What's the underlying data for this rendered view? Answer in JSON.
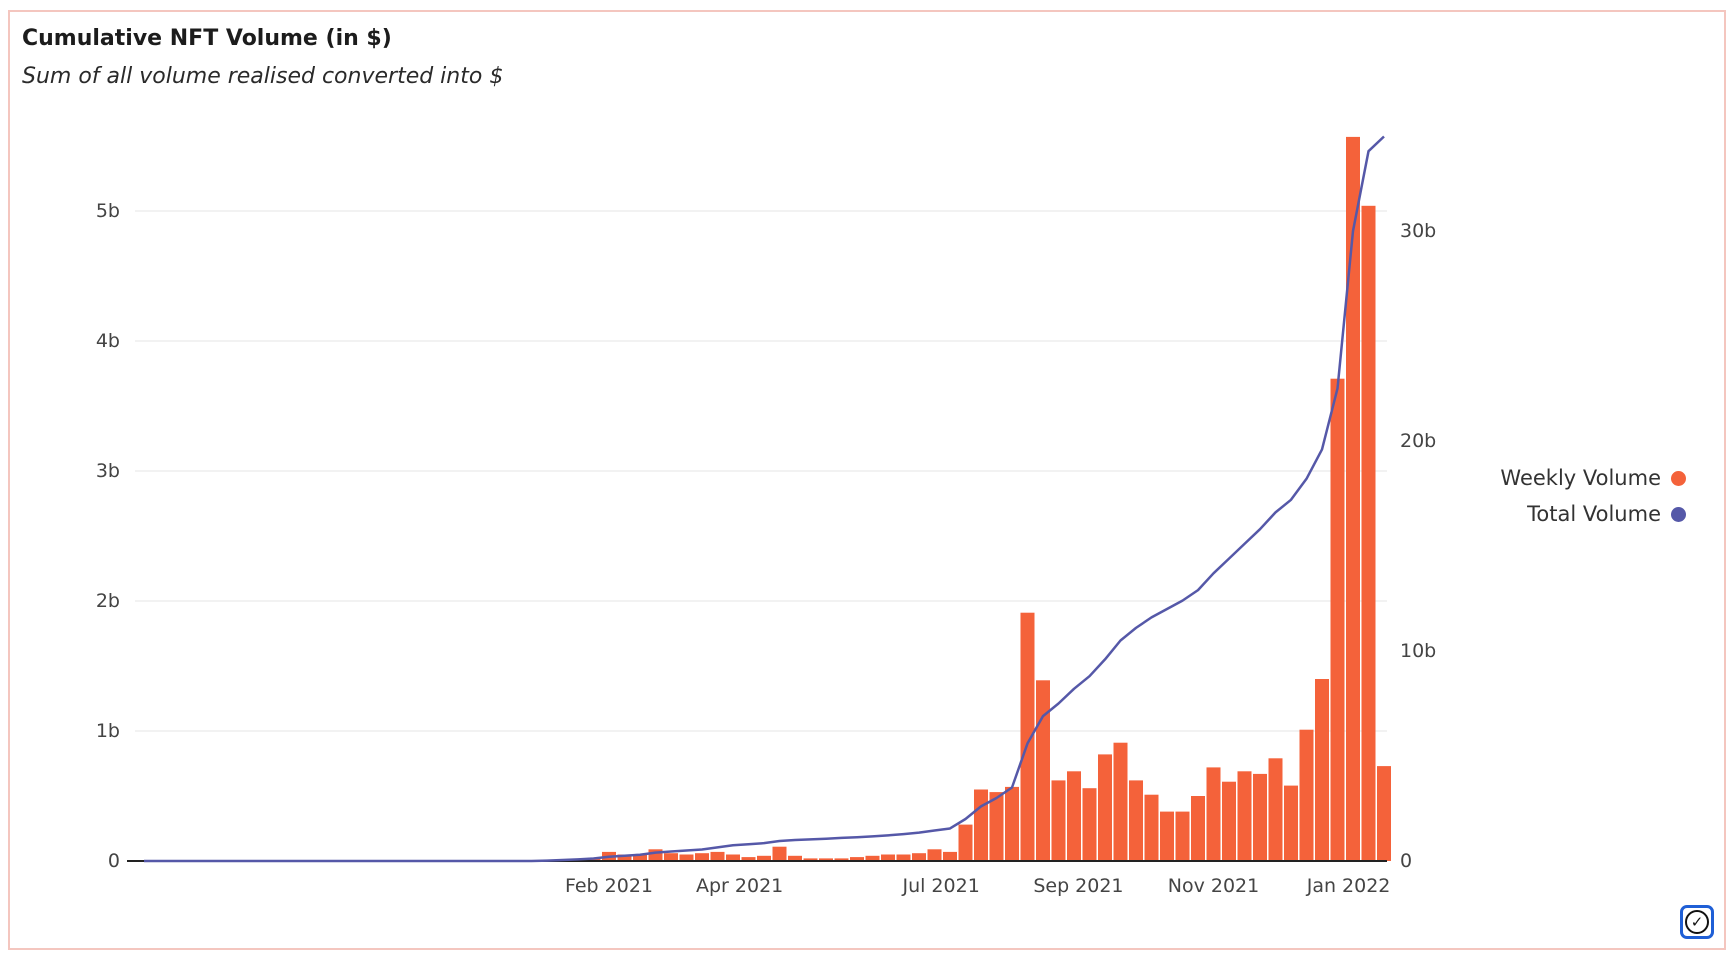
{
  "colors": {
    "weekly": "#F4623A",
    "total": "#5558A8",
    "grid": "#eeeeee"
  },
  "chart_data": {
    "type": "bar+line",
    "title": "Cumulative NFT Volume (in $)",
    "subtitle": "Sum of all volume realised converted into $",
    "legend": [
      {
        "name": "Weekly Volume",
        "color": "#F4623A"
      },
      {
        "name": "Total Volume",
        "color": "#5558A8"
      }
    ],
    "legend_position": "right",
    "first_week": "2021-01-04",
    "axis_start": "2020-06-22",
    "line_start": "2020-07-06",
    "x_ticks": [
      {
        "label": "Feb 2021",
        "date": "2021-02-01"
      },
      {
        "label": "Apr 2021",
        "date": "2021-04-01"
      },
      {
        "label": "Jul 2021",
        "date": "2021-07-01"
      },
      {
        "label": "Sep 2021",
        "date": "2021-09-01"
      },
      {
        "label": "Nov 2021",
        "date": "2021-11-01"
      },
      {
        "label": "Jan 2022",
        "date": "2022-01-01"
      }
    ],
    "y_left": {
      "ticks": [
        0,
        1,
        2,
        3,
        4,
        5
      ],
      "labels": [
        "0",
        "1b",
        "2b",
        "3b",
        "4b",
        "5b"
      ],
      "unit": "billion $",
      "max": 5.6
    },
    "y_right": {
      "ticks": [
        0,
        10,
        20,
        30
      ],
      "labels": [
        "0",
        "10b",
        "20b",
        "30b"
      ],
      "unit": "billion $"
    },
    "grid": true,
    "series": [
      {
        "name": "Weekly Volume",
        "type": "bar",
        "axis": "left",
        "values": [
          0.005,
          0.01,
          0.015,
          0.02,
          0.07,
          0.05,
          0.05,
          0.09,
          0.06,
          0.05,
          0.06,
          0.07,
          0.05,
          0.03,
          0.04,
          0.11,
          0.04,
          0.02,
          0.02,
          0.02,
          0.03,
          0.04,
          0.05,
          0.05,
          0.06,
          0.09,
          0.07,
          0.28,
          0.55,
          0.53,
          0.57,
          1.91,
          1.39,
          0.62,
          0.69,
          0.56,
          0.82,
          0.91,
          0.62,
          0.51,
          0.38,
          0.38,
          0.5,
          0.72,
          0.61,
          0.69,
          0.67,
          0.79,
          0.58,
          1.01,
          1.4,
          3.71,
          5.57,
          5.04,
          0.73
        ]
      },
      {
        "name": "Total Volume",
        "type": "line",
        "axis": "right",
        "values": [
          0.02,
          0.05,
          0.08,
          0.12,
          0.2,
          0.25,
          0.3,
          0.4,
          0.45,
          0.5,
          0.55,
          0.65,
          0.75,
          0.8,
          0.85,
          0.95,
          1.0,
          1.03,
          1.06,
          1.1,
          1.13,
          1.17,
          1.22,
          1.28,
          1.35,
          1.45,
          1.55,
          2.0,
          2.6,
          3.0,
          3.5,
          5.6,
          6.9,
          7.5,
          8.2,
          8.8,
          9.6,
          10.5,
          11.1,
          11.6,
          12.0,
          12.4,
          12.9,
          13.7,
          14.4,
          15.1,
          15.8,
          16.6,
          17.2,
          18.2,
          19.6,
          22.5,
          30.0,
          33.8,
          34.5
        ]
      }
    ]
  }
}
